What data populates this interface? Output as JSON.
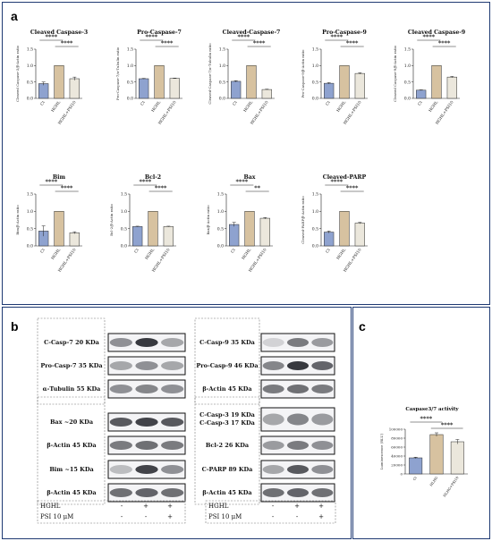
{
  "panels": {
    "a": "a",
    "b": "b",
    "c": "c"
  },
  "colors": {
    "ct": "#8ea2cf",
    "hghl": "#d7c2a0",
    "psi": "#ebe7dc",
    "bar_stroke": "#2b2b2b",
    "frame": "#1f3a73"
  },
  "chart_data": [
    {
      "type": "bar",
      "title": "Cleaved Caspase-3",
      "ylabel": "Cleaved Caspase-3/β-Actin ratio",
      "categories": [
        "Ct",
        "HGHL",
        "HGHL+PSI10"
      ],
      "values": [
        0.45,
        1.0,
        0.6
      ],
      "errors": [
        0.05,
        0,
        0.05
      ],
      "ylim": [
        0,
        1.5
      ],
      "yticks": [
        "0.0",
        "0.5",
        "1.0",
        "1.5"
      ],
      "annotations": [
        {
          "from": 0,
          "to": 1,
          "label": "****"
        },
        {
          "from": 1,
          "to": 2,
          "label": "****"
        }
      ]
    },
    {
      "type": "bar",
      "title": "Pro-Caspase-7",
      "ylabel": "Pro-Caspase-7/α-Tubulin ratio",
      "categories": [
        "Ct",
        "HGHL",
        "HGHL+PSI10"
      ],
      "values": [
        0.6,
        1.0,
        0.61
      ],
      "errors": [
        0.01,
        0,
        0.01
      ],
      "ylim": [
        0,
        1.5
      ],
      "yticks": [
        "0.0",
        "0.5",
        "1.0",
        "1.5"
      ],
      "annotations": [
        {
          "from": 0,
          "to": 1,
          "label": "****"
        },
        {
          "from": 1,
          "to": 2,
          "label": "****"
        }
      ]
    },
    {
      "type": "bar",
      "title": "Cleaved-Caspase-7",
      "ylabel": "Cleaved-Caspase-7/α-Tubulin ratio",
      "categories": [
        "Ct",
        "HGHL",
        "HGHL+PSI10"
      ],
      "values": [
        0.52,
        1.0,
        0.27
      ],
      "errors": [
        0.02,
        0,
        0.01
      ],
      "ylim": [
        0,
        1.5
      ],
      "yticks": [
        "0.0",
        "0.5",
        "1.0",
        "1.5"
      ],
      "annotations": [
        {
          "from": 0,
          "to": 1,
          "label": "****"
        },
        {
          "from": 1,
          "to": 2,
          "label": "****"
        }
      ]
    },
    {
      "type": "bar",
      "title": "Pro-Caspase-9",
      "ylabel": "Pro-Caspase-9/β-Actin ratio",
      "categories": [
        "Ct",
        "HGHL",
        "HGHL+PSI10"
      ],
      "values": [
        0.46,
        1.0,
        0.76
      ],
      "errors": [
        0.02,
        0,
        0.02
      ],
      "ylim": [
        0,
        1.5
      ],
      "yticks": [
        "0.0",
        "0.5",
        "1.0",
        "1.5"
      ],
      "annotations": [
        {
          "from": 0,
          "to": 1,
          "label": "****"
        },
        {
          "from": 1,
          "to": 2,
          "label": "****"
        }
      ]
    },
    {
      "type": "bar",
      "title": "Cleaved Caspase-9",
      "ylabel": "Cleaved Caspase-9/β-Actin ratio",
      "categories": [
        "Ct",
        "HGHL",
        "HGHL+PSI10"
      ],
      "values": [
        0.25,
        1.0,
        0.65
      ],
      "errors": [
        0.01,
        0,
        0.02
      ],
      "ylim": [
        0,
        1.5
      ],
      "yticks": [
        "0.0",
        "0.5",
        "1.0",
        "1.5"
      ],
      "annotations": [
        {
          "from": 0,
          "to": 1,
          "label": "****"
        },
        {
          "from": 1,
          "to": 2,
          "label": "****"
        }
      ]
    },
    {
      "type": "bar",
      "title": "Bim",
      "ylabel": "Bim/β-Actin ratio",
      "categories": [
        "Ct",
        "HGHL",
        "HGHL+PSI10"
      ],
      "values": [
        0.43,
        1.0,
        0.38
      ],
      "errors": [
        0.15,
        0,
        0.03
      ],
      "ylim": [
        0,
        1.5
      ],
      "yticks": [
        "0.0",
        "0.5",
        "1.0",
        "1.5"
      ],
      "annotations": [
        {
          "from": 0,
          "to": 1,
          "label": "****"
        },
        {
          "from": 1,
          "to": 2,
          "label": "****"
        }
      ]
    },
    {
      "type": "bar",
      "title": "Bcl-2",
      "ylabel": "Bcl-2/β-Actin ratio",
      "categories": [
        "Ct",
        "HGHL",
        "HGHL+PSI10"
      ],
      "values": [
        0.56,
        1.0,
        0.56
      ],
      "errors": [
        0.01,
        0,
        0.01
      ],
      "ylim": [
        0,
        1.5
      ],
      "yticks": [
        "0.0",
        "0.5",
        "1.0",
        "1.5"
      ],
      "annotations": [
        {
          "from": 0,
          "to": 1,
          "label": "****"
        },
        {
          "from": 1,
          "to": 2,
          "label": "****"
        }
      ]
    },
    {
      "type": "bar",
      "title": "Bax",
      "ylabel": "Bax/β-Actin ratio",
      "categories": [
        "Ct",
        "HGHL",
        "HGHL+PSI10"
      ],
      "values": [
        0.62,
        1.0,
        0.8
      ],
      "errors": [
        0.06,
        0,
        0.02
      ],
      "ylim": [
        0,
        1.5
      ],
      "yticks": [
        "0.0",
        "0.5",
        "1.0",
        "1.5"
      ],
      "annotations": [
        {
          "from": 0,
          "to": 1,
          "label": "****"
        },
        {
          "from": 1,
          "to": 2,
          "label": "**"
        }
      ]
    },
    {
      "type": "bar",
      "title": "Cleaved-PARP",
      "ylabel": "Cleaved-PARP/β-Actin ratio",
      "categories": [
        "Ct",
        "HGHL",
        "HGHL+PSI10"
      ],
      "values": [
        0.4,
        1.0,
        0.66
      ],
      "errors": [
        0.03,
        0,
        0.02
      ],
      "ylim": [
        0,
        1.5
      ],
      "yticks": [
        "0.0",
        "0.5",
        "1.0",
        "1.5"
      ],
      "annotations": [
        {
          "from": 0,
          "to": 1,
          "label": "****"
        },
        {
          "from": 1,
          "to": 2,
          "label": "****"
        }
      ]
    },
    {
      "type": "bar",
      "title": "Caspase3/7 activity",
      "ylabel": "Luminescence (RLU)",
      "categories": [
        "Ct",
        "HLHG",
        "HLHG+PSI10"
      ],
      "values": [
        36000,
        88000,
        72000
      ],
      "errors": [
        1500,
        4000,
        5000
      ],
      "ylim": [
        0,
        100000
      ],
      "yticks": [
        "0",
        "20000",
        "40000",
        "60000",
        "80000",
        "100000"
      ],
      "annotations": [
        {
          "from": 0,
          "to": 1,
          "label": "****"
        },
        {
          "from": 1,
          "to": 2,
          "label": "****"
        }
      ]
    }
  ],
  "blots": {
    "left_labels": [
      "C-Casp-7 20 KDa",
      "Pro-Casp-7 35 KDa",
      "α-Tubulin 55 KDa",
      "Bax ~20 KDa",
      "β-Actin 45 KDa",
      "Bim ~15 KDa",
      "β-Actin 45 KDa"
    ],
    "right_labels": [
      "C-Casp-9 35 KDa",
      "Pro-Casp-9 46 KDa",
      "β-Actin 45 KDa",
      "C-Casp-3 19 KDa",
      "C-Casp-3 17 KDa",
      "Bcl-2 26 KDa",
      "C-PARP 89 KDa",
      "β-Actin 45 KDa"
    ],
    "conditions": [
      {
        "label": "HGHL",
        "marks": [
          "-",
          "+",
          "+"
        ]
      },
      {
        "label": "PSI 10 μM",
        "marks": [
          "-",
          "-",
          "+"
        ]
      }
    ]
  }
}
